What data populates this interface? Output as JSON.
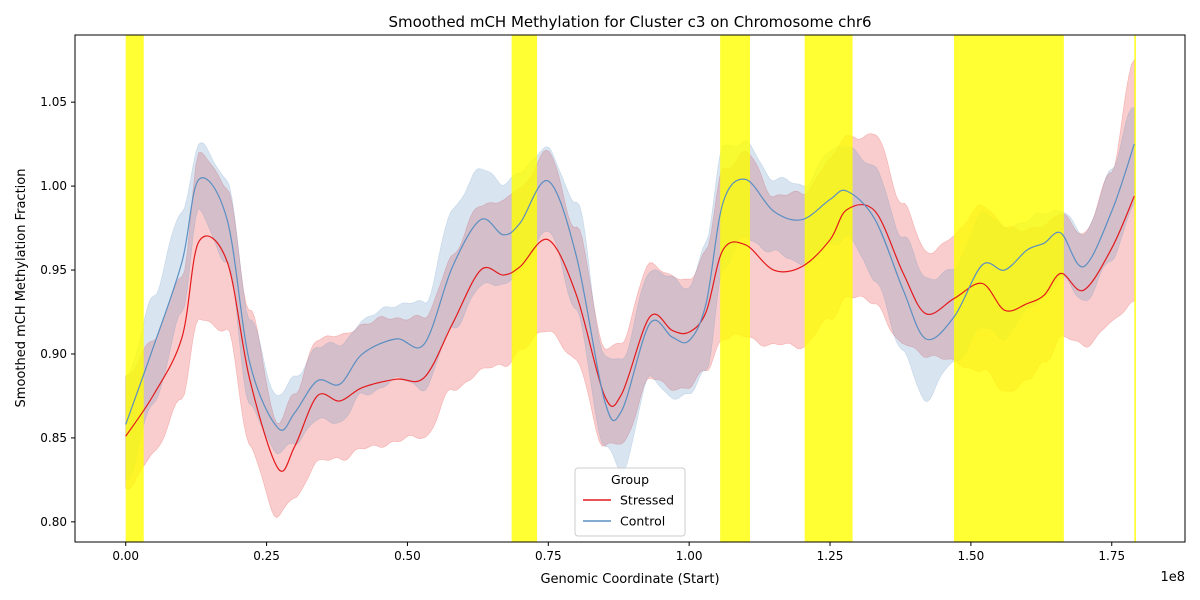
{
  "chart_data": {
    "type": "line",
    "title": "Smoothed mCH Methylation for Cluster c3 on Chromosome chr6",
    "xlabel": "Genomic Coordinate (Start)",
    "ylabel": "Smoothed mCH Methylation Fraction",
    "x_offset_label": "1e8",
    "xlim": [
      -0.09,
      1.88
    ],
    "ylim": [
      0.788,
      1.09
    ],
    "x_ticks": [
      0.0,
      0.25,
      0.5,
      0.75,
      1.0,
      1.25,
      1.5,
      1.75
    ],
    "x_tick_labels": [
      "0.00",
      "0.25",
      "0.50",
      "0.75",
      "1.00",
      "1.25",
      "1.50",
      "1.75"
    ],
    "y_ticks": [
      0.8,
      0.85,
      0.9,
      0.95,
      1.0,
      1.05
    ],
    "y_tick_labels": [
      "0.80",
      "0.85",
      "0.90",
      "0.95",
      "1.00",
      "1.05"
    ],
    "highlight_regions": [
      [
        0.0,
        0.032
      ],
      [
        0.685,
        0.73
      ],
      [
        1.055,
        1.108
      ],
      [
        1.205,
        1.29
      ],
      [
        1.47,
        1.665
      ],
      [
        1.79,
        1.793
      ]
    ],
    "highlight_color": "#ffff00",
    "legend": {
      "title": "Group",
      "position": "lower-center"
    },
    "series": [
      {
        "name": "Stressed",
        "color": "#e41a1c",
        "x": [
          0.0,
          0.05,
          0.1,
          0.13,
          0.18,
          0.22,
          0.27,
          0.3,
          0.34,
          0.38,
          0.42,
          0.48,
          0.53,
          0.58,
          0.63,
          0.67,
          0.7,
          0.75,
          0.8,
          0.85,
          0.88,
          0.93,
          0.97,
          1.0,
          1.03,
          1.06,
          1.1,
          1.15,
          1.2,
          1.25,
          1.28,
          1.33,
          1.38,
          1.42,
          1.47,
          1.52,
          1.56,
          1.6,
          1.63,
          1.66,
          1.7,
          1.75,
          1.79
        ],
        "values": [
          0.851,
          0.876,
          0.91,
          0.967,
          0.955,
          0.885,
          0.832,
          0.845,
          0.875,
          0.872,
          0.88,
          0.885,
          0.886,
          0.918,
          0.95,
          0.947,
          0.952,
          0.968,
          0.935,
          0.875,
          0.876,
          0.922,
          0.914,
          0.913,
          0.925,
          0.962,
          0.965,
          0.95,
          0.952,
          0.968,
          0.986,
          0.985,
          0.948,
          0.924,
          0.933,
          0.942,
          0.926,
          0.93,
          0.935,
          0.948,
          0.938,
          0.963,
          0.994
        ],
        "band_lower": [
          0.82,
          0.84,
          0.875,
          0.92,
          0.915,
          0.845,
          0.802,
          0.815,
          0.835,
          0.838,
          0.843,
          0.848,
          0.851,
          0.878,
          0.89,
          0.893,
          0.902,
          0.915,
          0.895,
          0.845,
          0.846,
          0.885,
          0.88,
          0.88,
          0.89,
          0.91,
          0.91,
          0.905,
          0.905,
          0.92,
          0.935,
          0.93,
          0.905,
          0.9,
          0.895,
          0.89,
          0.878,
          0.883,
          0.895,
          0.91,
          0.905,
          0.918,
          0.932
        ],
        "band_upper": [
          0.885,
          0.91,
          0.945,
          1.02,
          1.0,
          0.925,
          0.86,
          0.875,
          0.91,
          0.91,
          0.918,
          0.922,
          0.921,
          0.958,
          0.99,
          0.99,
          1.0,
          1.02,
          0.975,
          0.905,
          0.906,
          0.955,
          0.945,
          0.945,
          0.96,
          1.01,
          1.02,
          0.995,
          0.995,
          1.015,
          1.03,
          1.03,
          0.99,
          0.96,
          0.97,
          0.99,
          0.975,
          0.975,
          0.975,
          0.985,
          0.97,
          1.01,
          1.075
        ]
      },
      {
        "name": "Control",
        "color": "#5b8fc2",
        "x": [
          0.0,
          0.05,
          0.1,
          0.13,
          0.18,
          0.22,
          0.27,
          0.3,
          0.34,
          0.38,
          0.42,
          0.48,
          0.53,
          0.58,
          0.63,
          0.67,
          0.7,
          0.75,
          0.8,
          0.85,
          0.88,
          0.93,
          0.97,
          1.0,
          1.03,
          1.06,
          1.1,
          1.15,
          1.2,
          1.25,
          1.28,
          1.33,
          1.38,
          1.42,
          1.47,
          1.52,
          1.56,
          1.6,
          1.63,
          1.66,
          1.7,
          1.75,
          1.79
        ],
        "values": [
          0.858,
          0.905,
          0.955,
          1.004,
          0.98,
          0.895,
          0.856,
          0.865,
          0.884,
          0.882,
          0.9,
          0.909,
          0.906,
          0.952,
          0.98,
          0.971,
          0.978,
          1.003,
          0.958,
          0.872,
          0.866,
          0.918,
          0.91,
          0.908,
          0.93,
          0.99,
          1.004,
          0.985,
          0.98,
          0.992,
          0.997,
          0.98,
          0.938,
          0.909,
          0.922,
          0.953,
          0.95,
          0.962,
          0.966,
          0.972,
          0.952,
          0.985,
          1.025
        ],
        "band_lower": [
          0.825,
          0.87,
          0.925,
          0.985,
          0.955,
          0.87,
          0.84,
          0.848,
          0.86,
          0.86,
          0.875,
          0.885,
          0.88,
          0.915,
          0.94,
          0.942,
          0.95,
          0.975,
          0.925,
          0.845,
          0.83,
          0.885,
          0.875,
          0.875,
          0.89,
          0.95,
          0.97,
          0.96,
          0.955,
          0.965,
          0.97,
          0.945,
          0.9,
          0.873,
          0.895,
          0.915,
          0.91,
          0.925,
          0.935,
          0.945,
          0.932,
          0.955,
          0.99
        ],
        "band_upper": [
          0.885,
          0.935,
          0.985,
          1.025,
          1.005,
          0.92,
          0.875,
          0.885,
          0.905,
          0.905,
          0.92,
          0.93,
          0.93,
          0.985,
          1.012,
          1.0,
          1.01,
          1.022,
          0.99,
          0.9,
          0.895,
          0.95,
          0.945,
          0.94,
          0.965,
          1.025,
          1.025,
          1.005,
          1.0,
          1.02,
          1.025,
          1.01,
          0.97,
          0.945,
          0.95,
          0.985,
          0.975,
          0.98,
          0.983,
          0.987,
          0.97,
          1.01,
          1.048
        ]
      }
    ]
  }
}
